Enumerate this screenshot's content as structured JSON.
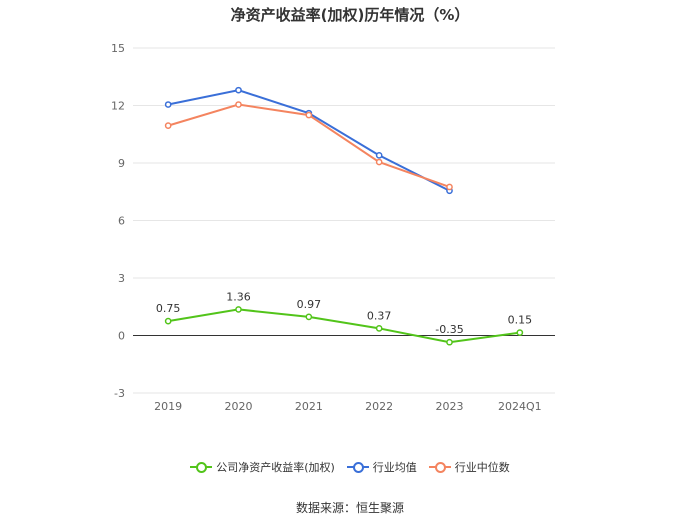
{
  "chart_data": {
    "type": "line",
    "title": "净资产收益率(加权)历年情况（%）",
    "categories": [
      "2019",
      "2020",
      "2021",
      "2022",
      "2023",
      "2024Q1"
    ],
    "ylim": [
      -3,
      15
    ],
    "yticks": [
      "-3",
      "0",
      "3",
      "6",
      "9",
      "12",
      "15"
    ],
    "grid": true,
    "legend_position": "bottom",
    "series": [
      {
        "name": "公司净资产收益率(加权)",
        "color": "#52c41a",
        "values": [
          0.75,
          1.36,
          0.97,
          0.37,
          -0.35,
          0.15
        ],
        "labels": [
          "0.75",
          "1.36",
          "0.97",
          "0.37",
          "-0.35",
          "0.15"
        ]
      },
      {
        "name": "行业均值",
        "color": "#3a6fd8",
        "values": [
          12.05,
          12.8,
          11.6,
          9.4,
          7.55,
          null
        ]
      },
      {
        "name": "行业中位数",
        "color": "#f4845f",
        "values": [
          10.95,
          12.05,
          11.5,
          9.05,
          7.75,
          null
        ]
      }
    ]
  },
  "source": "数据来源：恒生聚源"
}
